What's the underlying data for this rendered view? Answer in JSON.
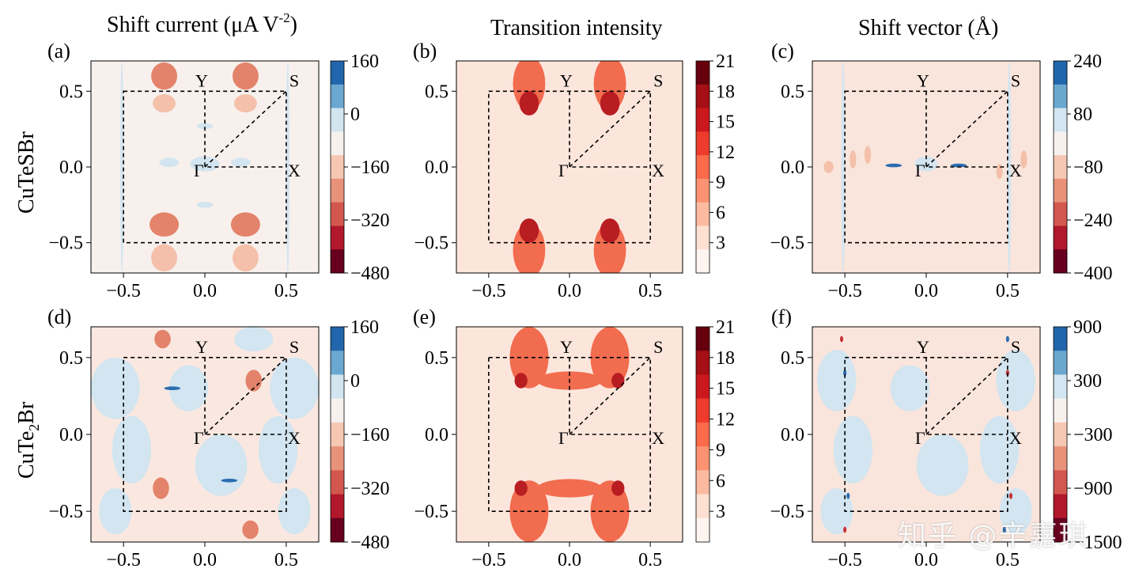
{
  "column_titles": [
    "Shift current (μA V",
    "-2",
    ")",
    "Transition intensity",
    "Shift vector (Å)"
  ],
  "row_labels": {
    "row1": "CuTeSBr",
    "row2_prefix": "CuTe",
    "row2_sub": "2",
    "row2_suffix": "Br"
  },
  "watermark": "知乎 @辛嘉琪",
  "colors": {
    "blue_dark": "#2166ac",
    "blue_mid": "#67a9cf",
    "blue_light": "#d1e5f0",
    "neutral": "#f7f1ee",
    "red_light": "#fddbc7",
    "red_mid": "#ef8a62",
    "red_dark": "#b2182b",
    "red_darkest": "#67001f"
  },
  "chart_data": [
    {
      "panel": "(a)",
      "type": "heatmap",
      "title": "",
      "xlabel": "",
      "ylabel": "",
      "xlim": [
        -0.7,
        0.7
      ],
      "ylim": [
        -0.7,
        0.7
      ],
      "xticks": [
        "−0.5",
        "0.0",
        "0.5"
      ],
      "yticks": [
        "0.5",
        "0.0",
        "−0.5"
      ],
      "kpoints": [
        "Y",
        "S",
        "Γ",
        "X"
      ],
      "colorbar": {
        "ticks": [
          "160",
          "0",
          "−160",
          "−320",
          "−480"
        ],
        "min": -480,
        "max": 160
      },
      "palette": "div",
      "background": "#f7f0ec",
      "blobs": [
        {
          "x": -0.25,
          "y": 0.6,
          "rx": 0.08,
          "ry": 0.09,
          "level": "red2"
        },
        {
          "x": 0.25,
          "y": 0.6,
          "rx": 0.08,
          "ry": 0.09,
          "level": "red2"
        },
        {
          "x": -0.25,
          "y": 0.42,
          "rx": 0.07,
          "ry": 0.06,
          "level": "red1"
        },
        {
          "x": 0.25,
          "y": 0.42,
          "rx": 0.07,
          "ry": 0.06,
          "level": "red1"
        },
        {
          "x": -0.25,
          "y": -0.38,
          "rx": 0.09,
          "ry": 0.08,
          "level": "red2"
        },
        {
          "x": 0.25,
          "y": -0.38,
          "rx": 0.09,
          "ry": 0.08,
          "level": "red2"
        },
        {
          "x": -0.25,
          "y": -0.6,
          "rx": 0.08,
          "ry": 0.09,
          "level": "red1"
        },
        {
          "x": 0.25,
          "y": -0.6,
          "rx": 0.08,
          "ry": 0.09,
          "level": "red1"
        },
        {
          "x": 0.0,
          "y": 0.02,
          "rx": 0.09,
          "ry": 0.05,
          "level": "blue1"
        },
        {
          "x": -0.22,
          "y": 0.03,
          "rx": 0.06,
          "ry": 0.03,
          "level": "blue1"
        },
        {
          "x": 0.22,
          "y": 0.03,
          "rx": 0.06,
          "ry": 0.03,
          "level": "blue1"
        },
        {
          "x": 0.0,
          "y": -0.25,
          "rx": 0.05,
          "ry": 0.02,
          "level": "blue1"
        },
        {
          "x": 0.0,
          "y": 0.27,
          "rx": 0.05,
          "ry": 0.02,
          "level": "blue1"
        },
        {
          "x": -0.51,
          "y": 0.0,
          "rx": 0.01,
          "ry": 0.7,
          "level": "blue1"
        },
        {
          "x": 0.51,
          "y": 0.0,
          "rx": 0.01,
          "ry": 0.7,
          "level": "blue1"
        }
      ]
    },
    {
      "panel": "(b)",
      "type": "heatmap",
      "title": "",
      "xlabel": "",
      "ylabel": "",
      "xlim": [
        -0.7,
        0.7
      ],
      "ylim": [
        -0.7,
        0.7
      ],
      "xticks": [
        "−0.5",
        "0.0",
        "0.5"
      ],
      "yticks": [
        "0.5",
        "0.0",
        "−0.5"
      ],
      "kpoints": [
        "Y",
        "S",
        "Γ",
        "X"
      ],
      "colorbar": {
        "ticks": [
          "21",
          "18",
          "15",
          "12",
          "9",
          "6",
          "3"
        ],
        "min": 0,
        "max": 21
      },
      "palette": "seq",
      "background": "#fce6dc",
      "blobs": [
        {
          "x": -0.25,
          "y": 0.55,
          "rx": 0.1,
          "ry": 0.18,
          "level": "red2"
        },
        {
          "x": 0.25,
          "y": 0.55,
          "rx": 0.1,
          "ry": 0.18,
          "level": "red2"
        },
        {
          "x": -0.25,
          "y": 0.42,
          "rx": 0.06,
          "ry": 0.08,
          "level": "red3"
        },
        {
          "x": 0.25,
          "y": 0.42,
          "rx": 0.06,
          "ry": 0.08,
          "level": "red3"
        },
        {
          "x": -0.25,
          "y": -0.55,
          "rx": 0.1,
          "ry": 0.18,
          "level": "red2"
        },
        {
          "x": 0.25,
          "y": -0.55,
          "rx": 0.1,
          "ry": 0.18,
          "level": "red2"
        },
        {
          "x": -0.25,
          "y": -0.42,
          "rx": 0.06,
          "ry": 0.08,
          "level": "red3"
        },
        {
          "x": 0.25,
          "y": -0.42,
          "rx": 0.06,
          "ry": 0.08,
          "level": "red3"
        }
      ]
    },
    {
      "panel": "(c)",
      "type": "heatmap",
      "title": "",
      "xlabel": "",
      "ylabel": "",
      "xlim": [
        -0.7,
        0.7
      ],
      "ylim": [
        -0.7,
        0.7
      ],
      "xticks": [
        "−0.5",
        "0.0",
        "0.5"
      ],
      "yticks": [
        "0.5",
        "0.0",
        "−0.5"
      ],
      "kpoints": [
        "Y",
        "S",
        "Γ",
        "X"
      ],
      "colorbar": {
        "ticks": [
          "240",
          "80",
          "−80",
          "−240",
          "−400"
        ],
        "min": -400,
        "max": 240
      },
      "palette": "div",
      "background": "#fae5dc",
      "blobs": [
        {
          "x": -0.51,
          "y": 0.0,
          "rx": 0.012,
          "ry": 0.7,
          "level": "blue1"
        },
        {
          "x": 0.51,
          "y": 0.0,
          "rx": 0.012,
          "ry": 0.7,
          "level": "blue1"
        },
        {
          "x": 0.0,
          "y": 0.02,
          "rx": 0.07,
          "ry": 0.05,
          "level": "blue1"
        },
        {
          "x": -0.2,
          "y": 0.01,
          "rx": 0.05,
          "ry": 0.012,
          "level": "blue3"
        },
        {
          "x": 0.2,
          "y": 0.01,
          "rx": 0.05,
          "ry": 0.012,
          "level": "blue3"
        },
        {
          "x": -0.45,
          "y": 0.05,
          "rx": 0.02,
          "ry": 0.06,
          "level": "red1"
        },
        {
          "x": -0.6,
          "y": 0.0,
          "rx": 0.03,
          "ry": 0.04,
          "level": "red1"
        },
        {
          "x": -0.36,
          "y": 0.08,
          "rx": 0.02,
          "ry": 0.06,
          "level": "red1"
        },
        {
          "x": 0.45,
          "y": -0.03,
          "rx": 0.02,
          "ry": 0.05,
          "level": "red1"
        },
        {
          "x": 0.6,
          "y": 0.05,
          "rx": 0.02,
          "ry": 0.06,
          "level": "red1"
        }
      ]
    },
    {
      "panel": "(d)",
      "type": "heatmap",
      "title": "",
      "xlabel": "",
      "ylabel": "",
      "xlim": [
        -0.7,
        0.7
      ],
      "ylim": [
        -0.7,
        0.7
      ],
      "xticks": [
        "−0.5",
        "0.0",
        "0.5"
      ],
      "yticks": [
        "0.5",
        "0.0",
        "−0.5"
      ],
      "kpoints": [
        "Y",
        "S",
        "Γ",
        "X"
      ],
      "colorbar": {
        "ticks": [
          "160",
          "0",
          "−160",
          "−320",
          "−480"
        ],
        "min": -480,
        "max": 160
      },
      "palette": "div",
      "background": "#fae8e0",
      "blobs": [
        {
          "x": -0.55,
          "y": 0.3,
          "rx": 0.15,
          "ry": 0.2,
          "level": "blue1"
        },
        {
          "x": 0.55,
          "y": 0.3,
          "rx": 0.15,
          "ry": 0.2,
          "level": "blue1"
        },
        {
          "x": -0.45,
          "y": -0.1,
          "rx": 0.12,
          "ry": 0.22,
          "level": "blue1"
        },
        {
          "x": 0.45,
          "y": -0.1,
          "rx": 0.12,
          "ry": 0.22,
          "level": "blue1"
        },
        {
          "x": 0.1,
          "y": -0.2,
          "rx": 0.16,
          "ry": 0.2,
          "level": "blue1"
        },
        {
          "x": -0.1,
          "y": 0.3,
          "rx": 0.12,
          "ry": 0.15,
          "level": "blue1"
        },
        {
          "x": -0.55,
          "y": -0.5,
          "rx": 0.1,
          "ry": 0.15,
          "level": "blue1"
        },
        {
          "x": 0.55,
          "y": -0.5,
          "rx": 0.1,
          "ry": 0.15,
          "level": "blue1"
        },
        {
          "x": 0.3,
          "y": 0.62,
          "rx": 0.12,
          "ry": 0.08,
          "level": "blue1"
        },
        {
          "x": -0.2,
          "y": 0.3,
          "rx": 0.05,
          "ry": 0.012,
          "level": "blue3"
        },
        {
          "x": 0.15,
          "y": -0.3,
          "rx": 0.05,
          "ry": 0.012,
          "level": "blue3"
        },
        {
          "x": -0.26,
          "y": 0.62,
          "rx": 0.05,
          "ry": 0.06,
          "level": "red2"
        },
        {
          "x": 0.3,
          "y": 0.35,
          "rx": 0.05,
          "ry": 0.07,
          "level": "red2"
        },
        {
          "x": -0.27,
          "y": -0.35,
          "rx": 0.05,
          "ry": 0.07,
          "level": "red2"
        },
        {
          "x": 0.28,
          "y": -0.62,
          "rx": 0.05,
          "ry": 0.06,
          "level": "red2"
        }
      ]
    },
    {
      "panel": "(e)",
      "type": "heatmap",
      "title": "",
      "xlabel": "",
      "ylabel": "",
      "xlim": [
        -0.7,
        0.7
      ],
      "ylim": [
        -0.7,
        0.7
      ],
      "xticks": [
        "−0.5",
        "0.0",
        "0.5"
      ],
      "yticks": [
        "0.5",
        "0.0",
        "−0.5"
      ],
      "kpoints": [
        "Y",
        "S",
        "Γ",
        "X"
      ],
      "colorbar": {
        "ticks": [
          "21",
          "18",
          "15",
          "12",
          "9",
          "6",
          "3"
        ],
        "min": 0,
        "max": 21
      },
      "palette": "seq",
      "background": "#fce6dc",
      "blobs": [
        {
          "x": -0.25,
          "y": 0.5,
          "rx": 0.12,
          "ry": 0.2,
          "level": "red2"
        },
        {
          "x": 0.25,
          "y": 0.5,
          "rx": 0.12,
          "ry": 0.2,
          "level": "red2"
        },
        {
          "x": 0.0,
          "y": 0.35,
          "rx": 0.2,
          "ry": 0.06,
          "level": "red2"
        },
        {
          "x": -0.3,
          "y": 0.35,
          "rx": 0.04,
          "ry": 0.05,
          "level": "red3"
        },
        {
          "x": 0.3,
          "y": 0.35,
          "rx": 0.04,
          "ry": 0.05,
          "level": "red3"
        },
        {
          "x": -0.25,
          "y": -0.5,
          "rx": 0.12,
          "ry": 0.2,
          "level": "red2"
        },
        {
          "x": 0.25,
          "y": -0.5,
          "rx": 0.12,
          "ry": 0.2,
          "level": "red2"
        },
        {
          "x": 0.0,
          "y": -0.35,
          "rx": 0.2,
          "ry": 0.06,
          "level": "red2"
        },
        {
          "x": -0.3,
          "y": -0.35,
          "rx": 0.04,
          "ry": 0.05,
          "level": "red3"
        },
        {
          "x": 0.3,
          "y": -0.35,
          "rx": 0.04,
          "ry": 0.05,
          "level": "red3"
        }
      ]
    },
    {
      "panel": "(f)",
      "type": "heatmap",
      "title": "",
      "xlabel": "",
      "ylabel": "",
      "xlim": [
        -0.7,
        0.7
      ],
      "ylim": [
        -0.7,
        0.7
      ],
      "xticks": [
        "−0.5",
        "0.0",
        "0.5"
      ],
      "yticks": [
        "0.5",
        "0.0",
        "−0.5"
      ],
      "kpoints": [
        "Y",
        "S",
        "Γ",
        "X"
      ],
      "colorbar": {
        "ticks": [
          "900",
          "300",
          "−300",
          "−900",
          "−1500"
        ],
        "min": -1500,
        "max": 900
      },
      "palette": "div",
      "background": "#fae5dc",
      "blobs": [
        {
          "x": -0.55,
          "y": 0.35,
          "rx": 0.12,
          "ry": 0.2,
          "level": "blue1"
        },
        {
          "x": 0.55,
          "y": 0.35,
          "rx": 0.12,
          "ry": 0.2,
          "level": "blue1"
        },
        {
          "x": -0.45,
          "y": -0.1,
          "rx": 0.12,
          "ry": 0.22,
          "level": "blue1"
        },
        {
          "x": 0.45,
          "y": -0.1,
          "rx": 0.12,
          "ry": 0.22,
          "level": "blue1"
        },
        {
          "x": 0.1,
          "y": -0.2,
          "rx": 0.16,
          "ry": 0.2,
          "level": "blue1"
        },
        {
          "x": -0.1,
          "y": 0.3,
          "rx": 0.12,
          "ry": 0.15,
          "level": "blue1"
        },
        {
          "x": -0.55,
          "y": -0.5,
          "rx": 0.1,
          "ry": 0.15,
          "level": "blue1"
        },
        {
          "x": 0.55,
          "y": -0.5,
          "rx": 0.1,
          "ry": 0.15,
          "level": "blue1"
        },
        {
          "x": -0.5,
          "y": 0.4,
          "rx": 0.01,
          "ry": 0.02,
          "level": "blue3"
        },
        {
          "x": 0.5,
          "y": 0.4,
          "rx": 0.01,
          "ry": 0.02,
          "level": "red3"
        },
        {
          "x": -0.48,
          "y": -0.4,
          "rx": 0.01,
          "ry": 0.02,
          "level": "blue3"
        },
        {
          "x": 0.52,
          "y": -0.4,
          "rx": 0.01,
          "ry": 0.02,
          "level": "red3"
        },
        {
          "x": -0.52,
          "y": 0.62,
          "rx": 0.01,
          "ry": 0.02,
          "level": "red3"
        },
        {
          "x": 0.5,
          "y": 0.62,
          "rx": 0.01,
          "ry": 0.02,
          "level": "blue3"
        },
        {
          "x": -0.5,
          "y": -0.62,
          "rx": 0.01,
          "ry": 0.02,
          "level": "red3"
        },
        {
          "x": 0.48,
          "y": -0.62,
          "rx": 0.01,
          "ry": 0.02,
          "level": "blue3"
        }
      ]
    }
  ]
}
